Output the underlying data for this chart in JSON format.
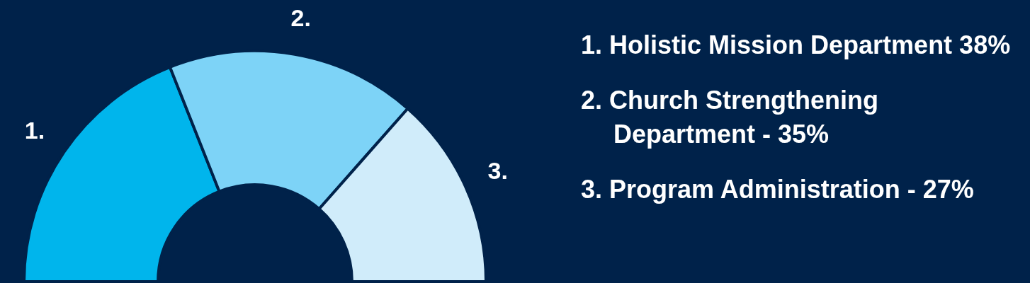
{
  "chart_data": {
    "type": "donut",
    "categories": [
      "1.",
      "2.",
      "3."
    ],
    "values": [
      38,
      35,
      27
    ],
    "colors": [
      "#00b5ec",
      "#7dd3f7",
      "#d0ecfa"
    ],
    "annotations": [
      "1. Holistic Mission Department 38%",
      "2. Church Strengthening Department - 35%",
      "3. Program Administration - 27%"
    ]
  }
}
